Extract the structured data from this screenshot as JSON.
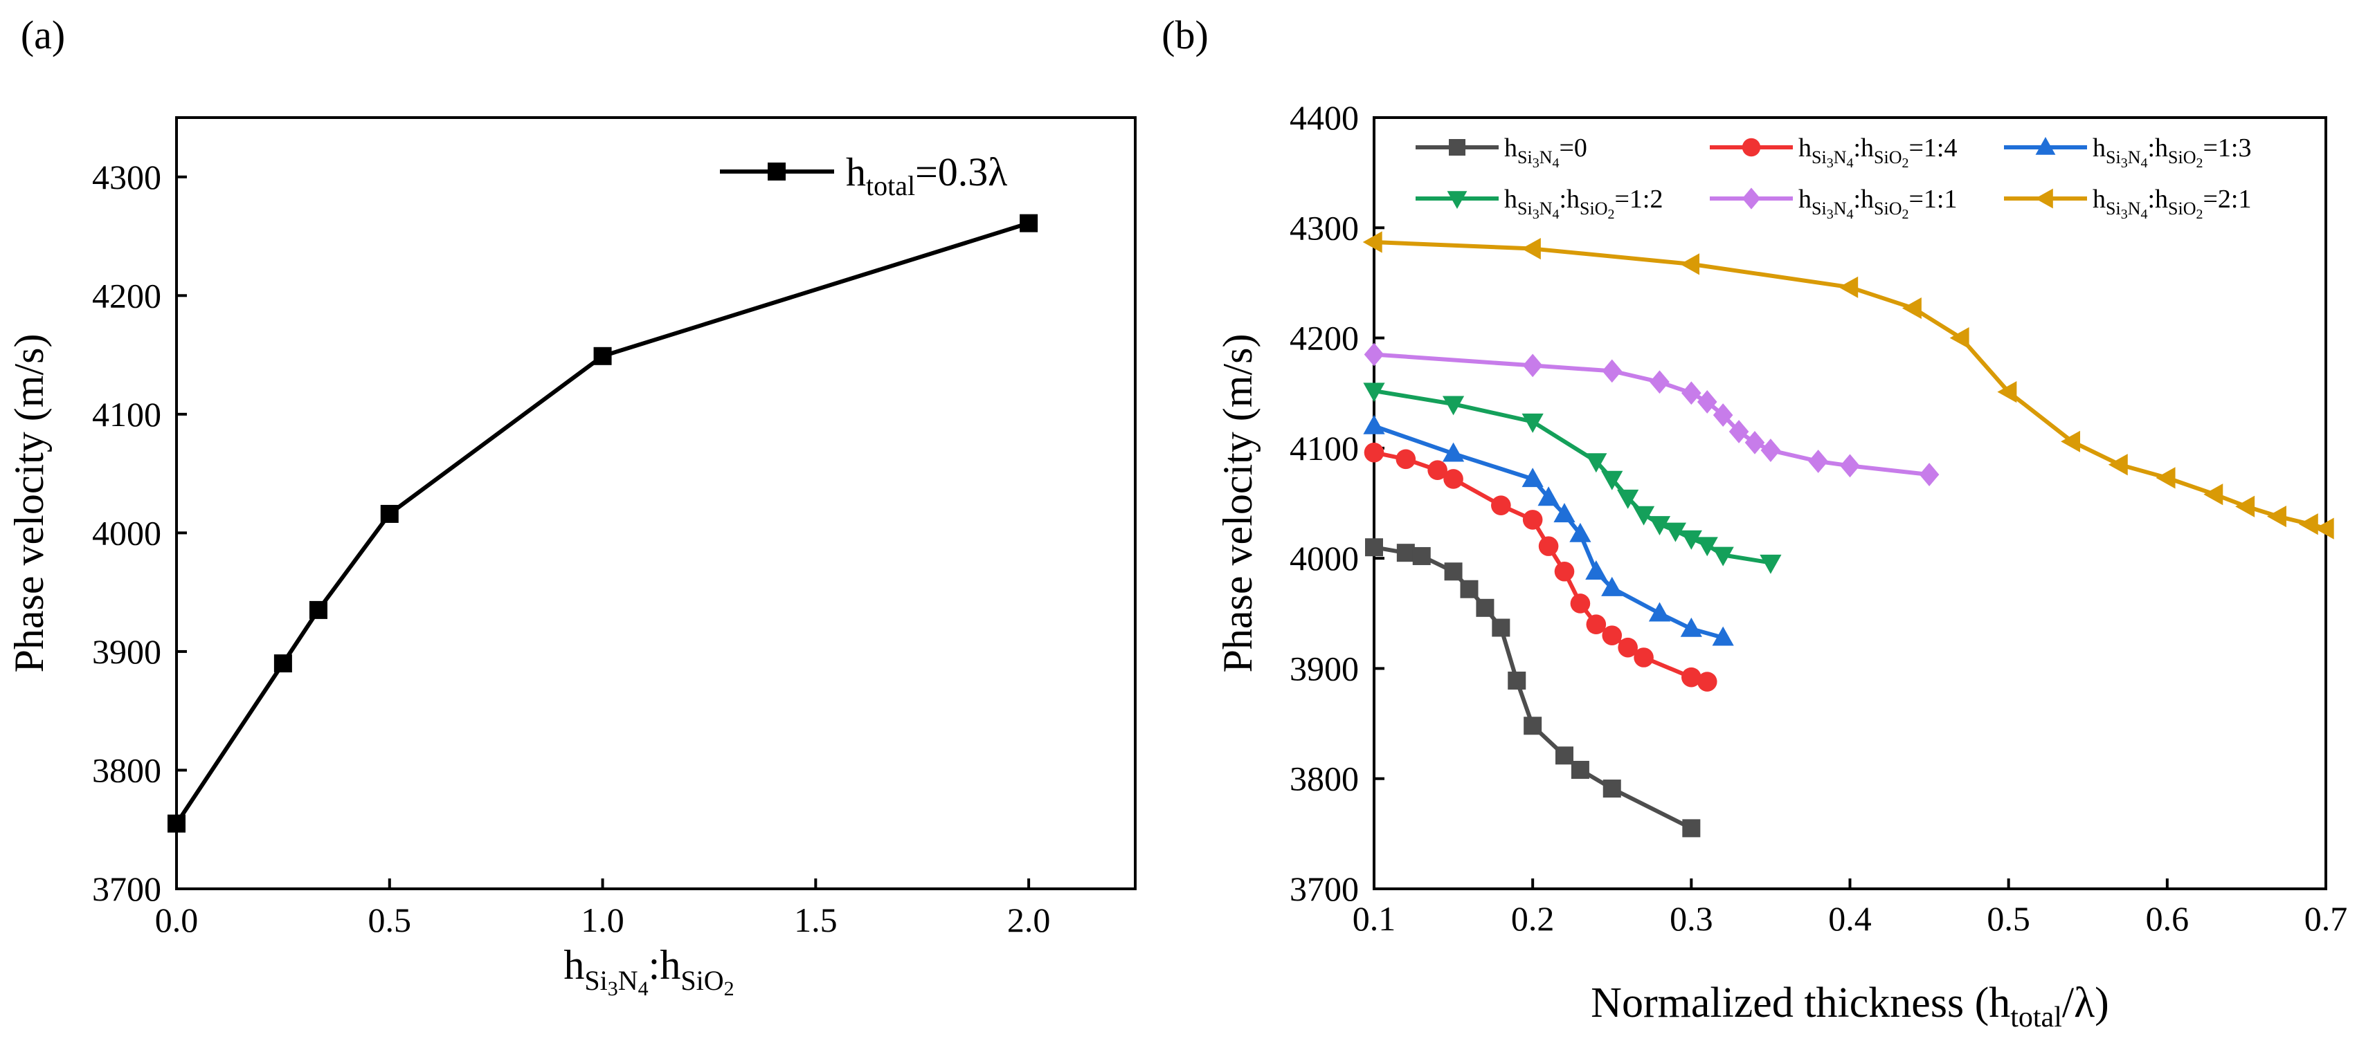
{
  "chart_data": [
    {
      "panel_label": "(a)",
      "type": "line",
      "xlabel": {
        "base": "h",
        "s1": "Si",
        "s2": "3",
        "s3": "N",
        "s4": "4",
        "colon": ":h",
        "s5": "SiO",
        "s6": "2"
      },
      "ylabel": "Phase velocity (m/s)",
      "xlim": [
        0.0,
        2.25
      ],
      "ylim": [
        3700,
        4350
      ],
      "xticks": [
        0.0,
        0.5,
        1.0,
        1.5,
        2.0
      ],
      "xtick_labels": [
        "0.0",
        "0.5",
        "1.0",
        "1.5",
        "2.0"
      ],
      "yticks": [
        3700,
        3800,
        3900,
        4000,
        4100,
        4200,
        4300
      ],
      "ytick_labels": [
        "3700",
        "3800",
        "3900",
        "4000",
        "4100",
        "4200",
        "4300"
      ],
      "legend": {
        "position": "top-right",
        "label_base": "h",
        "label_sub": "total",
        "label_tail": "=0.3λ"
      },
      "series": [
        {
          "name": "h_total=0.3λ",
          "color": "#000000",
          "marker": "square",
          "x": [
            0,
            0.25,
            0.333,
            0.5,
            1.0,
            2.0
          ],
          "y": [
            3755,
            3890,
            3935,
            4016,
            4149,
            4261
          ]
        }
      ]
    },
    {
      "panel_label": "(b)",
      "type": "line",
      "xlabel": {
        "pre": "Normalized thickness (h",
        "sub": "total",
        "post": "/λ)"
      },
      "ylabel": "Phase velocity (m/s)",
      "xlim": [
        0.1,
        0.7
      ],
      "ylim": [
        3700,
        4400
      ],
      "xticks": [
        0.1,
        0.2,
        0.3,
        0.4,
        0.5,
        0.6,
        0.7
      ],
      "xtick_labels": [
        "0.1",
        "0.2",
        "0.3",
        "0.4",
        "0.5",
        "0.6",
        "0.7"
      ],
      "yticks": [
        3700,
        3800,
        3900,
        4000,
        4100,
        4200,
        4300,
        4400
      ],
      "ytick_labels": [
        "3700",
        "3800",
        "3900",
        "4000",
        "4100",
        "4200",
        "4300",
        "4400"
      ],
      "legend": {
        "position": "top"
      },
      "series": [
        {
          "name": "h_Si3N4=0",
          "ratio": "=0",
          "single": true,
          "color": "#4d4d4d",
          "marker": "square",
          "x": [
            0.1,
            0.12,
            0.13,
            0.15,
            0.16,
            0.17,
            0.18,
            0.19,
            0.2,
            0.22,
            0.23,
            0.25,
            0.3
          ],
          "y": [
            4010,
            4005,
            4002,
            3988,
            3972,
            3955,
            3937,
            3889,
            3848,
            3821,
            3808,
            3791,
            3755
          ]
        },
        {
          "name": "h_Si3N4:h_SiO2=1:4",
          "ratio": "=1:4",
          "single": false,
          "color": "#f03232",
          "marker": "circle",
          "x": [
            0.1,
            0.12,
            0.14,
            0.15,
            0.18,
            0.2,
            0.21,
            0.22,
            0.23,
            0.24,
            0.25,
            0.26,
            0.27,
            0.3,
            0.31
          ],
          "y": [
            4096,
            4090,
            4080,
            4072,
            4048,
            4035,
            4011,
            3988,
            3959,
            3940,
            3930,
            3919,
            3910,
            3892,
            3888
          ]
        },
        {
          "name": "h_Si3N4:h_SiO2=1:3",
          "ratio": "=1:3",
          "single": false,
          "color": "#1f6fd8",
          "marker": "triangle-up",
          "x": [
            0.1,
            0.15,
            0.2,
            0.21,
            0.22,
            0.23,
            0.24,
            0.25,
            0.28,
            0.3,
            0.32
          ],
          "y": [
            4120,
            4095,
            4072,
            4055,
            4040,
            4022,
            3988,
            3973,
            3950,
            3936,
            3928
          ]
        },
        {
          "name": "h_Si3N4:h_SiO2=1:2",
          "ratio": "=1:2",
          "single": false,
          "color": "#14a05a",
          "marker": "triangle-down",
          "x": [
            0.1,
            0.15,
            0.2,
            0.24,
            0.25,
            0.26,
            0.27,
            0.28,
            0.29,
            0.3,
            0.31,
            0.32,
            0.35
          ],
          "y": [
            4152,
            4140,
            4124,
            4088,
            4072,
            4055,
            4040,
            4031,
            4025,
            4018,
            4012,
            4003,
            3996
          ]
        },
        {
          "name": "h_Si3N4:h_SiO2=1:1",
          "ratio": "=1:1",
          "single": false,
          "color": "#c77cea",
          "marker": "diamond",
          "x": [
            0.1,
            0.2,
            0.25,
            0.28,
            0.3,
            0.31,
            0.32,
            0.33,
            0.34,
            0.35,
            0.38,
            0.4,
            0.45
          ],
          "y": [
            4185,
            4175,
            4170,
            4160,
            4150,
            4142,
            4130,
            4115,
            4105,
            4098,
            4088,
            4084,
            4076
          ]
        },
        {
          "name": "h_Si3N4:h_SiO2=2:1",
          "ratio": "=2:1",
          "single": false,
          "color": "#d99a06",
          "marker": "triangle-left",
          "x": [
            0.1,
            0.2,
            0.3,
            0.4,
            0.44,
            0.47,
            0.5,
            0.54,
            0.57,
            0.6,
            0.63,
            0.65,
            0.67,
            0.69,
            0.7
          ],
          "y": [
            4287,
            4281,
            4267,
            4246,
            4227,
            4200,
            4151,
            4106,
            4085,
            4073,
            4058,
            4047,
            4038,
            4031,
            4027
          ]
        }
      ]
    }
  ]
}
